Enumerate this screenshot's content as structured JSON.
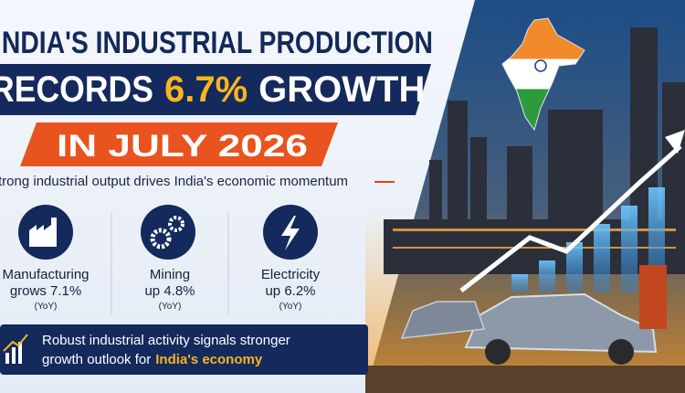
{
  "headline": {
    "line1": "INDIA'S INDUSTRIAL PRODUCTION",
    "line2_start": "RECORDS",
    "line2_highlight": "6.7%",
    "line2_end": "GROWTH",
    "line3": "IN JULY 2026"
  },
  "subtitle": "Strong industrial output drives India's economic momentum",
  "stats": [
    {
      "label": "Manufacturing",
      "value": "grows 7.1%",
      "note": "(YoY)"
    },
    {
      "label": "Mining",
      "value": "up 4.8%",
      "note": "(YoY)"
    },
    {
      "label": "Electricity",
      "value": "up 6.2%",
      "note": "(YoY)"
    }
  ],
  "footer": {
    "line1": "Robust industrial activity signals stronger",
    "line2_start": "growth outlook for",
    "line2_highlight": "India's economy"
  }
}
